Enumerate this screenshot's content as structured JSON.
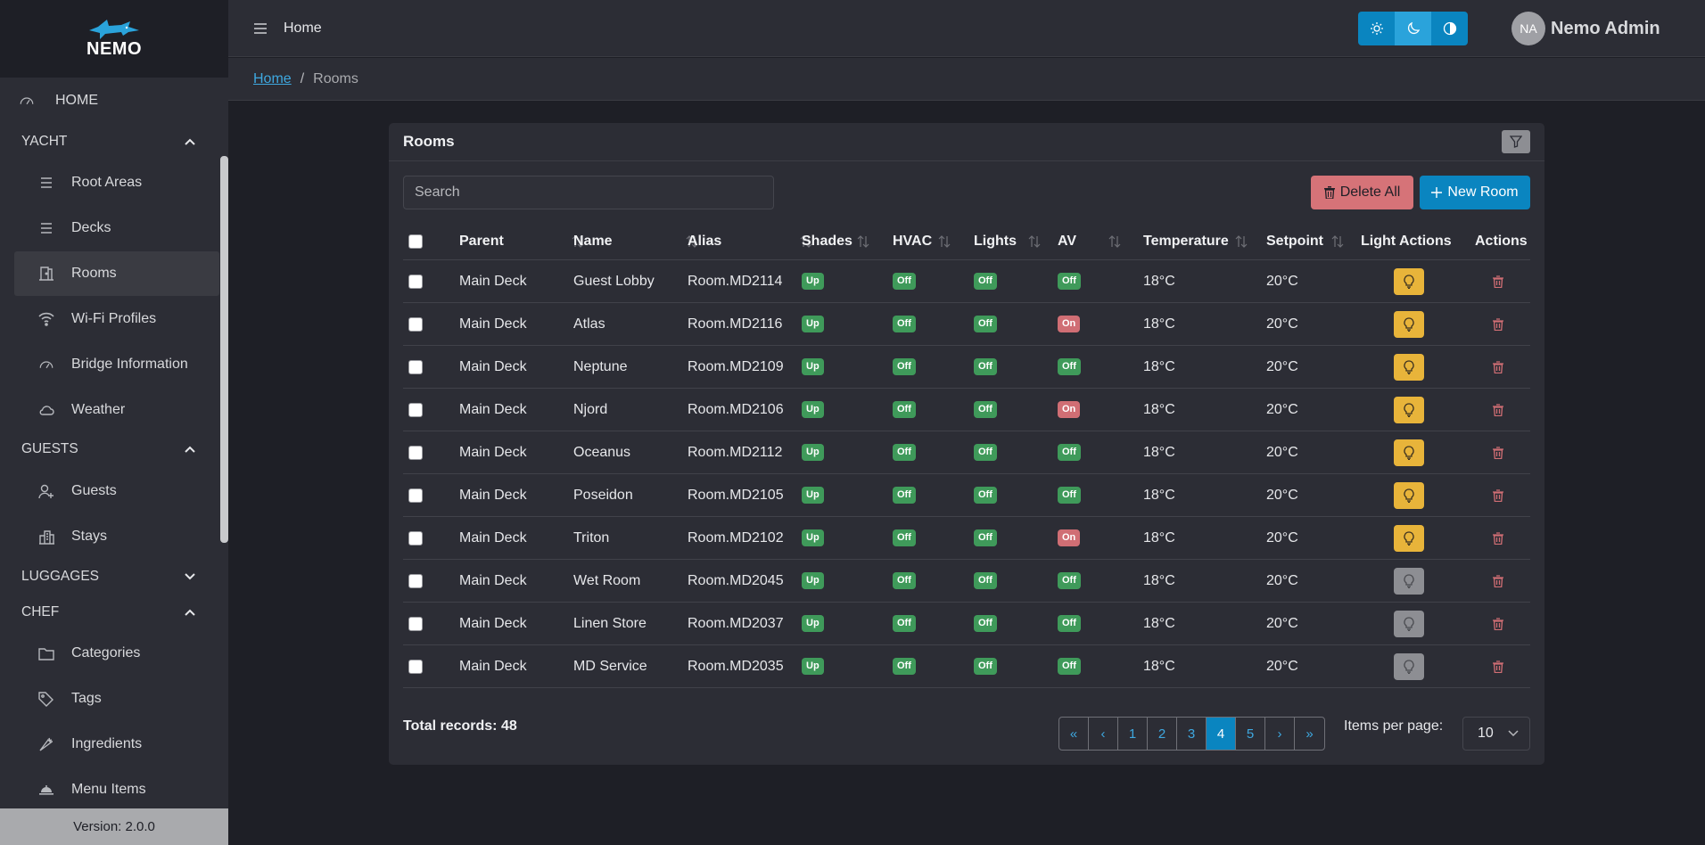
{
  "brand": {
    "name": "NEMO",
    "accent": "#2aa3db"
  },
  "sidebar": {
    "home": {
      "label": "HOME",
      "icon": "gauge-icon"
    },
    "sections": [
      {
        "label": "YACHT",
        "expanded": true
      },
      {
        "label": "GUESTS",
        "expanded": true
      },
      {
        "label": "LUGGAGES",
        "expanded": false
      },
      {
        "label": "CHEF",
        "expanded": true
      }
    ],
    "items": [
      {
        "label": "Root Areas",
        "icon": "list-icon"
      },
      {
        "label": "Decks",
        "icon": "list-icon"
      },
      {
        "label": "Rooms",
        "icon": "door-icon",
        "active": true
      },
      {
        "label": "Wi-Fi Profiles",
        "icon": "wifi-icon"
      },
      {
        "label": "Bridge Information",
        "icon": "gauge-icon"
      },
      {
        "label": "Weather",
        "icon": "cloud-icon"
      },
      {
        "label": "Guests",
        "icon": "user-add-icon"
      },
      {
        "label": "Stays",
        "icon": "building-icon"
      },
      {
        "label": "Categories",
        "icon": "folder-icon"
      },
      {
        "label": "Tags",
        "icon": "tag-icon"
      },
      {
        "label": "Ingredients",
        "icon": "carrot-icon"
      },
      {
        "label": "Menu Items",
        "icon": "dish-icon"
      }
    ],
    "version": "Version: 2.0.0"
  },
  "topbar": {
    "title": "Home",
    "theme_buttons": [
      "sun-icon",
      "moon-icon",
      "contrast-icon"
    ],
    "user": {
      "initials": "NA",
      "name": "Nemo Admin"
    }
  },
  "breadcrumb": {
    "home": "Home",
    "separator": "/",
    "current": "Rooms"
  },
  "card": {
    "title": "Rooms",
    "search_placeholder": "Search",
    "delete_all_label": "Delete All",
    "new_room_label": "New Room"
  },
  "table": {
    "columns": [
      "Parent",
      "Name",
      "Alias",
      "Shades",
      "HVAC",
      "Lights",
      "AV",
      "Temperature",
      "Setpoint",
      "Light Actions",
      "Actions"
    ],
    "rows": [
      {
        "parent": "Main Deck",
        "name": "Guest Lobby",
        "alias": "Room.MD2114",
        "shades": "Up",
        "hvac": "Off",
        "lights": "Off",
        "av": "Off",
        "temperature": "18°C",
        "setpoint": "20°C",
        "light_on": true
      },
      {
        "parent": "Main Deck",
        "name": "Atlas",
        "alias": "Room.MD2116",
        "shades": "Up",
        "hvac": "Off",
        "lights": "Off",
        "av": "On",
        "temperature": "18°C",
        "setpoint": "20°C",
        "light_on": true
      },
      {
        "parent": "Main Deck",
        "name": "Neptune",
        "alias": "Room.MD2109",
        "shades": "Up",
        "hvac": "Off",
        "lights": "Off",
        "av": "Off",
        "temperature": "18°C",
        "setpoint": "20°C",
        "light_on": true
      },
      {
        "parent": "Main Deck",
        "name": "Njord",
        "alias": "Room.MD2106",
        "shades": "Up",
        "hvac": "Off",
        "lights": "Off",
        "av": "On",
        "temperature": "18°C",
        "setpoint": "20°C",
        "light_on": true
      },
      {
        "parent": "Main Deck",
        "name": "Oceanus",
        "alias": "Room.MD2112",
        "shades": "Up",
        "hvac": "Off",
        "lights": "Off",
        "av": "Off",
        "temperature": "18°C",
        "setpoint": "20°C",
        "light_on": true
      },
      {
        "parent": "Main Deck",
        "name": "Poseidon",
        "alias": "Room.MD2105",
        "shades": "Up",
        "hvac": "Off",
        "lights": "Off",
        "av": "Off",
        "temperature": "18°C",
        "setpoint": "20°C",
        "light_on": true
      },
      {
        "parent": "Main Deck",
        "name": "Triton",
        "alias": "Room.MD2102",
        "shades": "Up",
        "hvac": "Off",
        "lights": "Off",
        "av": "On",
        "temperature": "18°C",
        "setpoint": "20°C",
        "light_on": true
      },
      {
        "parent": "Main Deck",
        "name": "Wet Room",
        "alias": "Room.MD2045",
        "shades": "Up",
        "hvac": "Off",
        "lights": "Off",
        "av": "Off",
        "temperature": "18°C",
        "setpoint": "20°C",
        "light_on": false
      },
      {
        "parent": "Main Deck",
        "name": "Linen Store",
        "alias": "Room.MD2037",
        "shades": "Up",
        "hvac": "Off",
        "lights": "Off",
        "av": "Off",
        "temperature": "18°C",
        "setpoint": "20°C",
        "light_on": false
      },
      {
        "parent": "Main Deck",
        "name": "MD Service",
        "alias": "Room.MD2035",
        "shades": "Up",
        "hvac": "Off",
        "lights": "Off",
        "av": "Off",
        "temperature": "18°C",
        "setpoint": "20°C",
        "light_on": false
      }
    ]
  },
  "footer": {
    "total_records": "Total records: 48",
    "pages": [
      "«",
      "‹",
      "1",
      "2",
      "3",
      "4",
      "5",
      "›",
      "»"
    ],
    "active_page": "4",
    "items_per_page_label": "Items per page:",
    "items_per_page_value": "10"
  },
  "colors": {
    "badge_green": "#3f9a5a",
    "badge_red": "#d06e74",
    "light_on": "#e8b43a",
    "primary": "#0a85c0",
    "danger": "#d67378"
  }
}
